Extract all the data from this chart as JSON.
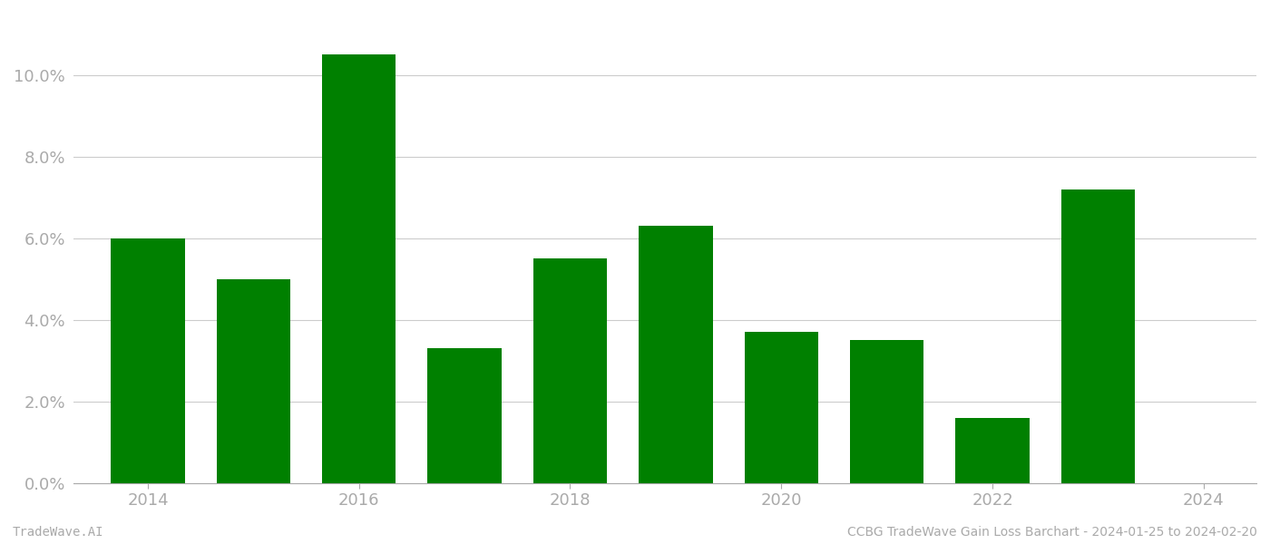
{
  "years": [
    2014,
    2015,
    2016,
    2017,
    2018,
    2019,
    2020,
    2021,
    2022,
    2023
  ],
  "values": [
    0.06,
    0.05,
    0.105,
    0.033,
    0.055,
    0.063,
    0.037,
    0.035,
    0.016,
    0.072
  ],
  "bar_color": "#008000",
  "background_color": "#ffffff",
  "grid_color": "#cccccc",
  "axis_color": "#aaaaaa",
  "tick_color": "#aaaaaa",
  "ylim": [
    0,
    0.115
  ],
  "yticks": [
    0.0,
    0.02,
    0.04,
    0.06,
    0.08,
    0.1
  ],
  "xtick_positions": [
    2014,
    2016,
    2018,
    2020,
    2022,
    2024
  ],
  "xlim": [
    2013.3,
    2024.5
  ],
  "footer_left": "TradeWave.AI",
  "footer_right": "CCBG TradeWave Gain Loss Barchart - 2024-01-25 to 2024-02-20",
  "tick_fontsize": 13,
  "footer_fontsize": 10,
  "bar_width": 0.7
}
